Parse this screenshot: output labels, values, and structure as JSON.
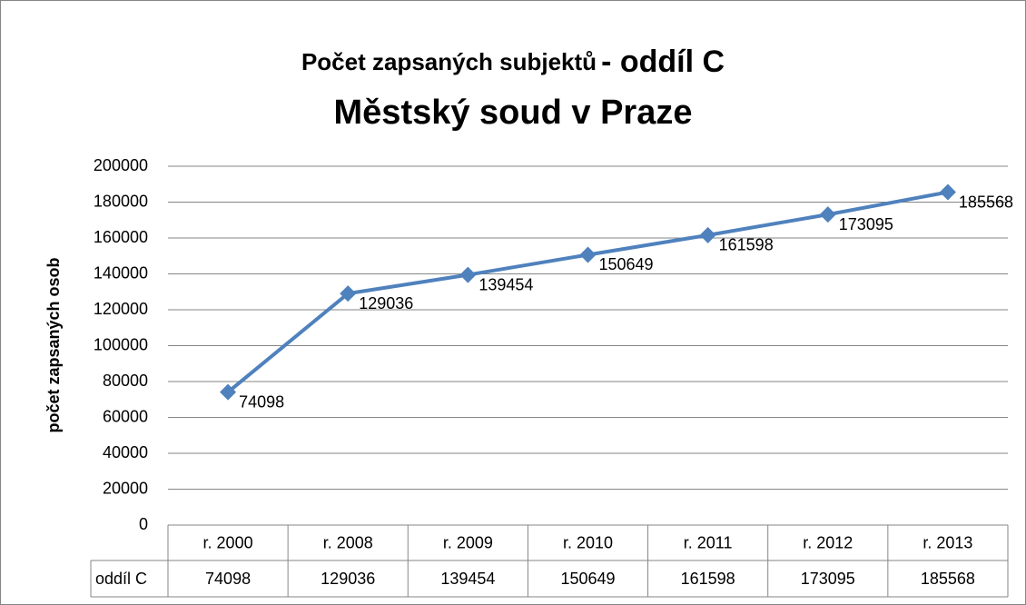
{
  "chart_data": {
    "type": "line",
    "title": [
      "Počet zapsaných subjektů",
      "- oddíl C",
      "Městský soud v Praze"
    ],
    "ylabel": "počet zapsaných osob",
    "categories": [
      "r. 2000",
      "r. 2008",
      "r. 2009",
      "r. 2010",
      "r. 2011",
      "r. 2012",
      "r. 2013"
    ],
    "series": [
      {
        "name": "oddíl C",
        "color": "#4f81bd",
        "values": [
          74098,
          129036,
          139454,
          150649,
          161598,
          173095,
          185568
        ]
      }
    ],
    "ylim": [
      0,
      200000
    ],
    "yticks": [
      0,
      20000,
      40000,
      60000,
      80000,
      100000,
      120000,
      140000,
      160000,
      180000,
      200000
    ],
    "grid": true
  }
}
